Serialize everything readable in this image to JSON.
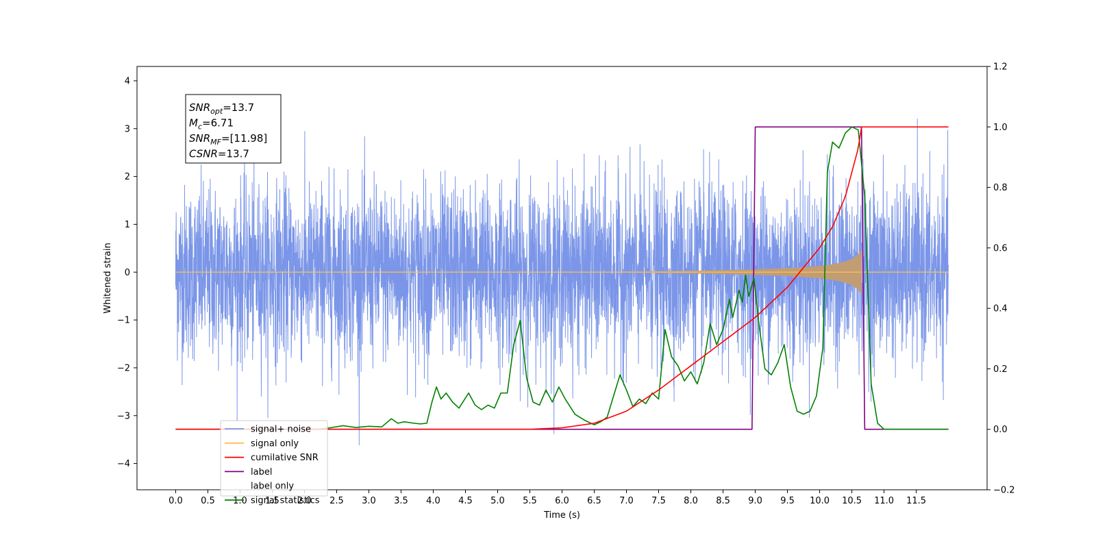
{
  "chart_data": {
    "type": "line",
    "xlabel": "Time (s)",
    "ylabel_left": "Whitened strain",
    "ylabel_right": "",
    "xlim": [
      -0.6,
      12.6
    ],
    "ylim_left": [
      -4.55,
      4.3
    ],
    "ylim_right": [
      -0.2,
      1.2
    ],
    "x_ticks": [
      "0.0",
      "0.5",
      "1.0",
      "1.5",
      "2.0",
      "2.5",
      "3.0",
      "3.5",
      "4.0",
      "4.5",
      "5.0",
      "5.5",
      "6.0",
      "6.5",
      "7.0",
      "7.5",
      "8.0",
      "8.5",
      "9.0",
      "9.5",
      "10.0",
      "10.5",
      "11.0",
      "11.5"
    ],
    "y_left_ticks": [
      "4",
      "3",
      "2",
      "1",
      "0",
      "−1",
      "−2",
      "−3",
      "−4"
    ],
    "y_right_ticks": [
      "1.2",
      "1.0",
      "0.8",
      "0.6",
      "0.4",
      "0.2",
      "0.0",
      "−0.2"
    ],
    "annotation": {
      "lines": [
        {
          "main": "SNR",
          "sub": "opt",
          "rest": "=13.7"
        },
        {
          "main": "M",
          "sub": "c",
          "rest": "=6.71"
        },
        {
          "main": "SNR",
          "sub": "MF",
          "rest": "=[11.98]"
        },
        {
          "main": "CSNR",
          "sub": "",
          "rest": "=13.7"
        }
      ]
    },
    "legend": {
      "placement": "lower-left",
      "entries": [
        "signal+ noise",
        "signal only",
        "cumilative SNR",
        "label",
        "label only",
        "signal statistics"
      ]
    },
    "colors": {
      "signal_noise": "#7b96e8",
      "signal_only": "#ffc04d",
      "signal_fill": "#c29d74",
      "cumulative_snr": "#ff0000",
      "label": "#800080",
      "signal_statistics": "#008000"
    },
    "series": [
      {
        "name": "signal+ noise",
        "axis": "left",
        "description_values": "gaussian noise, sample amplitude ~ ±2 with peaks to ~3.9",
        "x_range": [
          0.0,
          12.0
        ],
        "noise_sigma": 0.9
      },
      {
        "name": "signal only",
        "axis": "left",
        "x_range": [
          0.0,
          12.0
        ],
        "chirp_start": 6.3,
        "merger": 10.65,
        "peak_amplitude": 0.75
      },
      {
        "name": "cumilative SNR",
        "axis": "right",
        "x": [
          0.0,
          5.5,
          6.0,
          6.5,
          7.0,
          7.5,
          8.0,
          8.5,
          9.0,
          9.5,
          10.0,
          10.2,
          10.4,
          10.6,
          10.65,
          11.0,
          12.0
        ],
        "y": [
          0.0,
          0.0,
          0.005,
          0.02,
          0.06,
          0.13,
          0.21,
          0.29,
          0.37,
          0.47,
          0.6,
          0.67,
          0.77,
          0.93,
          1.0,
          1.0,
          1.0
        ]
      },
      {
        "name": "label",
        "axis": "right",
        "x": [
          0.0,
          8.95,
          9.0,
          10.65,
          10.7,
          12.0
        ],
        "y": [
          0.0,
          0.0,
          1.0,
          1.0,
          0.0,
          0.0
        ]
      },
      {
        "name": "signal statistics",
        "axis": "right",
        "x": [
          0.0,
          2.2,
          2.4,
          2.6,
          2.8,
          3.0,
          3.2,
          3.35,
          3.45,
          3.55,
          3.7,
          3.8,
          3.9,
          3.98,
          4.05,
          4.12,
          4.2,
          4.3,
          4.4,
          4.55,
          4.65,
          4.75,
          4.85,
          4.95,
          5.05,
          5.15,
          5.25,
          5.35,
          5.45,
          5.55,
          5.65,
          5.75,
          5.85,
          5.95,
          6.05,
          6.2,
          6.35,
          6.5,
          6.6,
          6.7,
          6.8,
          6.9,
          7.0,
          7.1,
          7.2,
          7.3,
          7.4,
          7.5,
          7.6,
          7.7,
          7.8,
          7.9,
          8.0,
          8.1,
          8.2,
          8.3,
          8.4,
          8.5,
          8.6,
          8.65,
          8.75,
          8.8,
          8.85,
          8.9,
          8.98,
          9.05,
          9.15,
          9.25,
          9.35,
          9.45,
          9.55,
          9.65,
          9.75,
          9.85,
          9.95,
          10.05,
          10.12,
          10.2,
          10.3,
          10.4,
          10.5,
          10.6,
          10.7,
          10.8,
          10.9,
          11.0,
          12.0
        ],
        "y": [
          0.0,
          0.0,
          0.005,
          0.012,
          0.006,
          0.01,
          0.008,
          0.035,
          0.02,
          0.025,
          0.02,
          0.018,
          0.02,
          0.09,
          0.14,
          0.1,
          0.12,
          0.09,
          0.07,
          0.12,
          0.08,
          0.065,
          0.08,
          0.07,
          0.12,
          0.12,
          0.28,
          0.36,
          0.17,
          0.09,
          0.08,
          0.13,
          0.09,
          0.14,
          0.1,
          0.05,
          0.03,
          0.015,
          0.025,
          0.04,
          0.11,
          0.18,
          0.13,
          0.075,
          0.1,
          0.085,
          0.12,
          0.1,
          0.33,
          0.24,
          0.21,
          0.16,
          0.19,
          0.15,
          0.22,
          0.35,
          0.28,
          0.33,
          0.43,
          0.37,
          0.46,
          0.42,
          0.51,
          0.44,
          0.5,
          0.36,
          0.2,
          0.18,
          0.22,
          0.28,
          0.14,
          0.06,
          0.05,
          0.06,
          0.11,
          0.27,
          0.85,
          0.95,
          0.93,
          0.98,
          1.0,
          0.99,
          0.77,
          0.15,
          0.02,
          0.0,
          0.0
        ]
      }
    ]
  }
}
